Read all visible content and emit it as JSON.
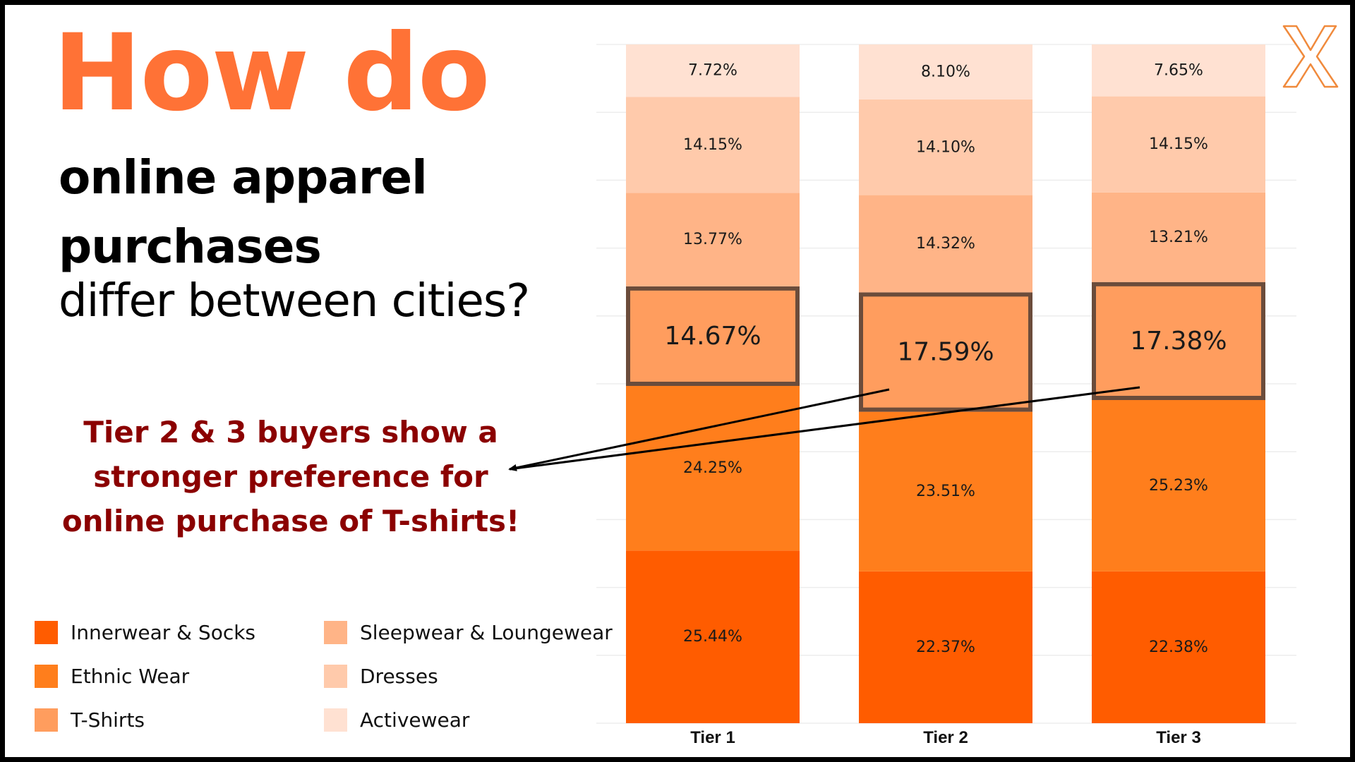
{
  "title": {
    "line1": "How do",
    "line2a": "online apparel",
    "line2b": "purchases",
    "line3": "differ between cities?"
  },
  "callout": {
    "line1": "Tier 2 & 3 buyers show a",
    "line2": "stronger preference for",
    "line3": "online purchase of T-shirts!"
  },
  "colors": {
    "accent": "#ff7236",
    "callout": "#8b0000",
    "highlight_box": "#6b4c3b",
    "arrow": "#000000"
  },
  "chart_data": {
    "type": "bar",
    "stacked": true,
    "percent": true,
    "categories": [
      "Tier 1",
      "Tier 2",
      "Tier 3"
    ],
    "series": [
      {
        "name": "Innerwear & Socks",
        "color": "#ff5c00",
        "values": [
          25.44,
          22.37,
          22.38
        ],
        "labels": [
          "25.44%",
          "22.37%",
          "22.38%"
        ]
      },
      {
        "name": "Ethnic Wear",
        "color": "#ff7e1c",
        "values": [
          24.25,
          23.51,
          25.23
        ],
        "labels": [
          "24.25%",
          "23.51%",
          "25.23%"
        ]
      },
      {
        "name": "T-Shirts",
        "color": "#ff9d5e",
        "values": [
          14.67,
          17.59,
          17.38
        ],
        "labels": [
          "14.67%",
          "17.59%",
          "17.38%"
        ],
        "highlighted": true
      },
      {
        "name": "Sleepwear & Loungewear",
        "color": "#ffb487",
        "values": [
          13.77,
          14.32,
          13.21
        ],
        "labels": [
          "13.77%",
          "14.32%",
          "13.21%"
        ]
      },
      {
        "name": "Dresses",
        "color": "#ffcaab",
        "values": [
          14.15,
          14.1,
          14.15
        ],
        "labels": [
          "14.15%",
          "14.10%",
          "14.15%"
        ]
      },
      {
        "name": "Activewear",
        "color": "#ffe1d2",
        "values": [
          7.72,
          8.1,
          7.65
        ],
        "labels": [
          "7.72%",
          "8.10%",
          "7.65%"
        ]
      }
    ],
    "ylim": [
      0,
      100
    ],
    "grid": true,
    "legend": "bottom-left"
  }
}
